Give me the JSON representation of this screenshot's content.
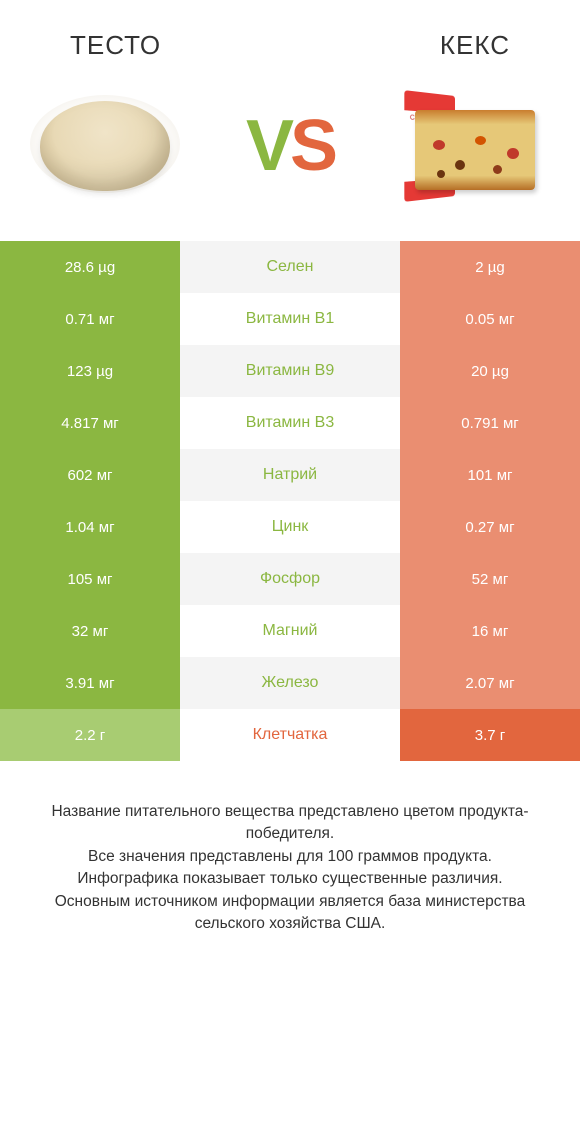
{
  "titles": {
    "left": "ТЕСТО",
    "right": "КЕКС"
  },
  "vs": {
    "v": "V",
    "s": "S"
  },
  "colors": {
    "green": "#8bb741",
    "orange": "#e2663e",
    "green_dim": "#a8cc72",
    "orange_dim": "#ea8e71",
    "mid_bg_even": "#ffffff",
    "mid_bg_odd": "#f4f4f4",
    "text_dark": "#333333"
  },
  "rows": [
    {
      "name": "Селен",
      "left": "28.6 µg",
      "right": "2 µg",
      "winner": "left"
    },
    {
      "name": "Витамин B1",
      "left": "0.71 мг",
      "right": "0.05 мг",
      "winner": "left"
    },
    {
      "name": "Витамин B9",
      "left": "123 µg",
      "right": "20 µg",
      "winner": "left"
    },
    {
      "name": "Витамин B3",
      "left": "4.817 мг",
      "right": "0.791 мг",
      "winner": "left"
    },
    {
      "name": "Натрий",
      "left": "602 мг",
      "right": "101 мг",
      "winner": "left"
    },
    {
      "name": "Цинк",
      "left": "1.04 мг",
      "right": "0.27 мг",
      "winner": "left"
    },
    {
      "name": "Фосфор",
      "left": "105 мг",
      "right": "52 мг",
      "winner": "left"
    },
    {
      "name": "Магний",
      "left": "32 мг",
      "right": "16 мг",
      "winner": "left"
    },
    {
      "name": "Железо",
      "left": "3.91 мг",
      "right": "2.07 мг",
      "winner": "left"
    },
    {
      "name": "Клетчатка",
      "left": "2.2 г",
      "right": "3.7 г",
      "winner": "right"
    }
  ],
  "footer": [
    "Название питательного вещества представлено цветом продукта-победителя.",
    "Все значения представлены для 100 граммов продукта.",
    "Инфографика показывает только существенные различия.",
    "Основным источником информации является база министерства сельского хозяйства США."
  ]
}
